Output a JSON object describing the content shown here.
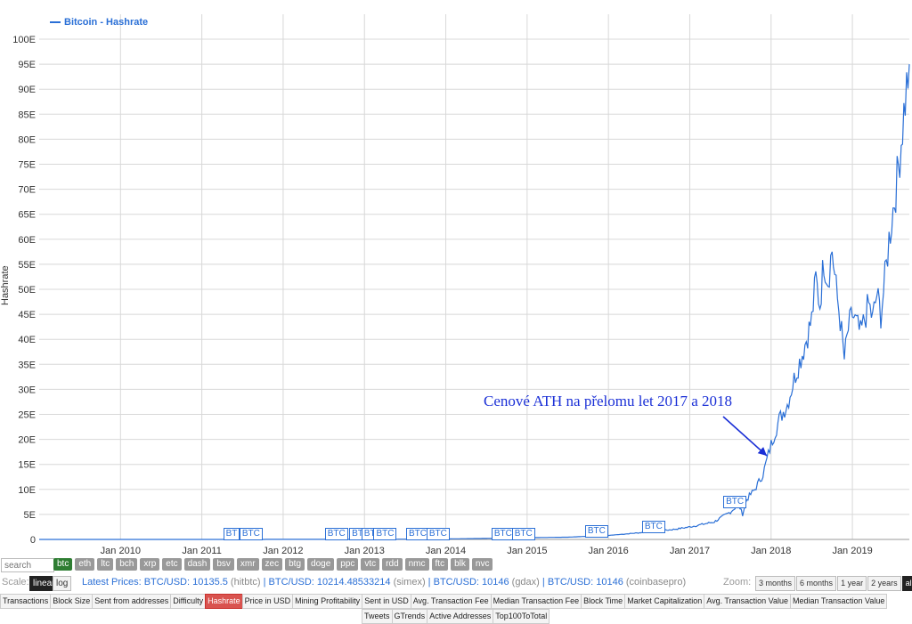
{
  "chart_data": {
    "type": "line",
    "title": "",
    "xlabel": "",
    "ylabel": "Hashrate",
    "legend": "top-left",
    "series": [
      {
        "name": "Bitcoin - Hashrate",
        "color": "#2a6fd6"
      }
    ],
    "x_ticks": [
      "Jan 2010",
      "Jan 2011",
      "Jan 2012",
      "Jan 2013",
      "Jan 2014",
      "Jan 2015",
      "Jan 2016",
      "Jan 2017",
      "Jan 2018",
      "Jan 2019"
    ],
    "y_ticks": [
      "0",
      "5E",
      "10E",
      "15E",
      "20E",
      "25E",
      "30E",
      "35E",
      "40E",
      "45E",
      "50E",
      "55E",
      "60E",
      "65E",
      "70E",
      "75E",
      "80E",
      "85E",
      "90E",
      "95E",
      "100E"
    ],
    "ylim": [
      0,
      100
    ],
    "xlim": [
      2009.0,
      2019.7
    ],
    "grid": true,
    "points": [
      [
        2009.0,
        0
      ],
      [
        2010.0,
        0
      ],
      [
        2011.0,
        0.005
      ],
      [
        2012.0,
        0.01
      ],
      [
        2013.0,
        0.02
      ],
      [
        2013.5,
        0.05
      ],
      [
        2014.0,
        0.1
      ],
      [
        2014.5,
        0.2
      ],
      [
        2015.0,
        0.35
      ],
      [
        2015.5,
        0.45
      ],
      [
        2016.0,
        0.8
      ],
      [
        2016.5,
        1.5
      ],
      [
        2016.8,
        2.0
      ],
      [
        2017.0,
        2.5
      ],
      [
        2017.3,
        3.5
      ],
      [
        2017.5,
        5.5
      ],
      [
        2017.6,
        7.0
      ],
      [
        2017.65,
        5.0
      ],
      [
        2017.7,
        8.0
      ],
      [
        2017.8,
        10.0
      ],
      [
        2017.9,
        13.0
      ],
      [
        2018.0,
        19.0
      ],
      [
        2018.1,
        24.0
      ],
      [
        2018.2,
        27.0
      ],
      [
        2018.3,
        33.0
      ],
      [
        2018.4,
        38.0
      ],
      [
        2018.5,
        44.0
      ],
      [
        2018.55,
        52.0
      ],
      [
        2018.6,
        47.0
      ],
      [
        2018.65,
        56.0
      ],
      [
        2018.7,
        52.0
      ],
      [
        2018.75,
        58.0
      ],
      [
        2018.8,
        50.0
      ],
      [
        2018.85,
        44.0
      ],
      [
        2018.9,
        36.0
      ],
      [
        2018.95,
        42.0
      ],
      [
        2019.0,
        45.0
      ],
      [
        2019.1,
        41.0
      ],
      [
        2019.2,
        47.0
      ],
      [
        2019.25,
        44.0
      ],
      [
        2019.3,
        49.0
      ],
      [
        2019.35,
        45.0
      ],
      [
        2019.4,
        52.0
      ],
      [
        2019.45,
        60.0
      ],
      [
        2019.5,
        66.0
      ],
      [
        2019.55,
        72.0
      ],
      [
        2019.6,
        80.0
      ],
      [
        2019.65,
        88.0
      ],
      [
        2019.7,
        95.0
      ]
    ],
    "btc_flags": [
      {
        "x": 2011.35,
        "label": "BT"
      },
      {
        "x": 2011.55,
        "label": "BTC"
      },
      {
        "x": 2012.6,
        "label": "BTC"
      },
      {
        "x": 2012.9,
        "label": "BTC"
      },
      {
        "x": 2013.05,
        "label": "BTC"
      },
      {
        "x": 2013.2,
        "label": "BTC"
      },
      {
        "x": 2013.6,
        "label": "BTC"
      },
      {
        "x": 2013.85,
        "label": "BTC"
      },
      {
        "x": 2014.65,
        "label": "BTC"
      },
      {
        "x": 2014.9,
        "label": "BTC"
      },
      {
        "x": 2015.8,
        "label": "BTC"
      },
      {
        "x": 2016.5,
        "label": "BTC"
      },
      {
        "x": 2017.5,
        "label": "BTC"
      }
    ],
    "annotation": "Cenové ATH na přelomu let 2017 a 2018"
  },
  "controls": {
    "search_placeholder": "search",
    "coins": [
      {
        "label": "btc",
        "active": true
      },
      {
        "label": "eth",
        "active": false
      },
      {
        "label": "ltc",
        "active": false
      },
      {
        "label": "bch",
        "active": false
      },
      {
        "label": "xrp",
        "active": false
      },
      {
        "label": "etc",
        "active": false
      },
      {
        "label": "dash",
        "active": false
      },
      {
        "label": "bsv",
        "active": false
      },
      {
        "label": "xmr",
        "active": false
      },
      {
        "label": "zec",
        "active": false
      },
      {
        "label": "btg",
        "active": false
      },
      {
        "label": "doge",
        "active": false
      },
      {
        "label": "ppc",
        "active": false
      },
      {
        "label": "vtc",
        "active": false
      },
      {
        "label": "rdd",
        "active": false
      },
      {
        "label": "nmc",
        "active": false
      },
      {
        "label": "ftc",
        "active": false
      },
      {
        "label": "blk",
        "active": false
      },
      {
        "label": "nvc",
        "active": false
      }
    ],
    "scale_label": "Scale:",
    "scale_linear": "linear",
    "scale_log": "log",
    "prices_label": "Latest Prices:",
    "prices": [
      {
        "pair": "BTC/USD: 10135.5",
        "source": "(hitbtc)"
      },
      {
        "pair": "BTC/USD: 10214.48533214",
        "source": "(simex)"
      },
      {
        "pair": "BTC/USD: 10146",
        "source": "(gdax)"
      },
      {
        "pair": "BTC/USD: 10146",
        "source": "(coinbasepro)"
      }
    ],
    "zoom_label": "Zoom:",
    "zoom_options": [
      {
        "label": "3 months",
        "active": false
      },
      {
        "label": "6 months",
        "active": false
      },
      {
        "label": "1 year",
        "active": false
      },
      {
        "label": "2 years",
        "active": false
      },
      {
        "label": "all time",
        "active": true
      }
    ]
  },
  "tabs": [
    {
      "label": "Transactions",
      "active": false
    },
    {
      "label": "Block Size",
      "active": false
    },
    {
      "label": "Sent from addresses",
      "active": false
    },
    {
      "label": "Difficulty",
      "active": false
    },
    {
      "label": "Hashrate",
      "active": true
    },
    {
      "label": "Price in USD",
      "active": false
    },
    {
      "label": "Mining Profitability",
      "active": false
    },
    {
      "label": "Sent in USD",
      "active": false
    },
    {
      "label": "Avg. Transaction Fee",
      "active": false
    },
    {
      "label": "Median Transaction Fee",
      "active": false
    },
    {
      "label": "Block Time",
      "active": false
    },
    {
      "label": "Market Capitalization",
      "active": false
    },
    {
      "label": "Avg. Transaction Value",
      "active": false
    },
    {
      "label": "Median Transaction Value",
      "active": false
    },
    {
      "label": "Tweets",
      "active": false
    },
    {
      "label": "GTrends",
      "active": false
    },
    {
      "label": "Active Addresses",
      "active": false
    },
    {
      "label": "Top100ToTotal",
      "active": false
    }
  ]
}
